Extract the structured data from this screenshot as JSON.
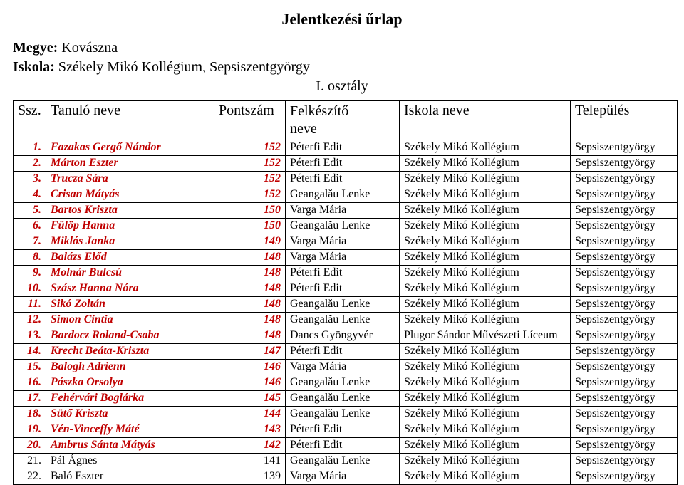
{
  "title": "Jelentkezési űrlap",
  "meta": {
    "county_label": "Megye:",
    "county_value": "Kovászna",
    "school_label": "Iskola:",
    "school_value": "Székely Mikó Kollégium, Sepsiszentgyörgy"
  },
  "subtitle": "I. osztály",
  "columns": {
    "ssz": "Ssz.",
    "name": "Tanuló neve",
    "points": "Pontszám",
    "preparer_line1": "Felkészítő",
    "preparer_line2": "neve",
    "school": "Iskola neve",
    "town": "Település"
  },
  "highlight_color": "#c00000",
  "rows": [
    {
      "n": "1.",
      "name": "Fazakas Gergő Nándor",
      "pts": "152",
      "prep": "Péterfi Edit",
      "school": "Székely Mikó Kollégium",
      "town": "Sepsiszentgyörgy",
      "hl": true
    },
    {
      "n": "2.",
      "name": "Márton Eszter",
      "pts": "152",
      "prep": "Péterfi Edit",
      "school": "Székely Mikó Kollégium",
      "town": "Sepsiszentgyörgy",
      "hl": true
    },
    {
      "n": "3.",
      "name": "Trucza Sára",
      "pts": "152",
      "prep": "Péterfi Edit",
      "school": "Székely Mikó Kollégium",
      "town": "Sepsiszentgyörgy",
      "hl": true
    },
    {
      "n": "4.",
      "name": "Crisan Mátyás",
      "pts": "152",
      "prep": "Geangalău Lenke",
      "school": "Székely Mikó Kollégium",
      "town": "Sepsiszentgyörgy",
      "hl": true
    },
    {
      "n": "5.",
      "name": "Bartos Kriszta",
      "pts": "150",
      "prep": "Varga Mária",
      "school": "Székely Mikó Kollégium",
      "town": "Sepsiszentgyörgy",
      "hl": true
    },
    {
      "n": "6.",
      "name": "Fülöp Hanna",
      "pts": "150",
      "prep": "Geangalău Lenke",
      "school": "Székely Mikó Kollégium",
      "town": "Sepsiszentgyörgy",
      "hl": true
    },
    {
      "n": "7.",
      "name": "Miklós Janka",
      "pts": "149",
      "prep": "Varga Mária",
      "school": "Székely Mikó Kollégium",
      "town": "Sepsiszentgyörgy",
      "hl": true
    },
    {
      "n": "8.",
      "name": "Balázs Előd",
      "pts": "148",
      "prep": "Varga Mária",
      "school": "Székely Mikó Kollégium",
      "town": "Sepsiszentgyörgy",
      "hl": true
    },
    {
      "n": "9.",
      "name": "Molnár Bulcsú",
      "pts": "148",
      "prep": "Péterfi Edit",
      "school": "Székely Mikó Kollégium",
      "town": "Sepsiszentgyörgy",
      "hl": true
    },
    {
      "n": "10.",
      "name": "Szász Hanna Nóra",
      "pts": "148",
      "prep": "Péterfi Edit",
      "school": "Székely Mikó Kollégium",
      "town": "Sepsiszentgyörgy",
      "hl": true
    },
    {
      "n": "11.",
      "name": "Sikó Zoltán",
      "pts": "148",
      "prep": "Geangalău Lenke",
      "school": "Székely Mikó Kollégium",
      "town": "Sepsiszentgyörgy",
      "hl": true
    },
    {
      "n": "12.",
      "name": "Simon Cintia",
      "pts": "148",
      "prep": "Geangalău Lenke",
      "school": "Székely Mikó Kollégium",
      "town": "Sepsiszentgyörgy",
      "hl": true
    },
    {
      "n": "13.",
      "name": "Bardocz Roland-Csaba",
      "pts": "148",
      "prep": "Dancs Gyöngyvér",
      "school": "Plugor Sándor Művészeti Líceum",
      "town": "Sepsiszentgyörgy",
      "hl": true
    },
    {
      "n": "14.",
      "name": "Krecht Beáta-Kriszta",
      "pts": "147",
      "prep": "Péterfi Edit",
      "school": "Székely Mikó Kollégium",
      "town": "Sepsiszentgyörgy",
      "hl": true
    },
    {
      "n": "15.",
      "name": "Balogh Adrienn",
      "pts": "146",
      "prep": "Varga Mária",
      "school": "Székely Mikó Kollégium",
      "town": "Sepsiszentgyörgy",
      "hl": true
    },
    {
      "n": "16.",
      "name": "Pászka Orsolya",
      "pts": "146",
      "prep": "Geangalău Lenke",
      "school": "Székely Mikó Kollégium",
      "town": "Sepsiszentgyörgy",
      "hl": true
    },
    {
      "n": "17.",
      "name": "Fehérvári Boglárka",
      "pts": "145",
      "prep": "Geangalău Lenke",
      "school": "Székely Mikó Kollégium",
      "town": "Sepsiszentgyörgy",
      "hl": true
    },
    {
      "n": "18.",
      "name": "Sütő Kriszta",
      "pts": "144",
      "prep": "Geangalău Lenke",
      "school": "Székely Mikó Kollégium",
      "town": "Sepsiszentgyörgy",
      "hl": true
    },
    {
      "n": "19.",
      "name": "Vén-Vinceffy Máté",
      "pts": "143",
      "prep": "Péterfi Edit",
      "school": "Székely Mikó Kollégium",
      "town": "Sepsiszentgyörgy",
      "hl": true
    },
    {
      "n": "20.",
      "name": "Ambrus Sánta Mátyás",
      "pts": "142",
      "prep": "Péterfi Edit",
      "school": "Székely Mikó Kollégium",
      "town": "Sepsiszentgyörgy",
      "hl": true
    },
    {
      "n": "21.",
      "name": "Pál Ágnes",
      "pts": "141",
      "prep": "Geangalău Lenke",
      "school": "Székely Mikó Kollégium",
      "town": "Sepsiszentgyörgy",
      "hl": false
    },
    {
      "n": "22.",
      "name": "Baló Eszter",
      "pts": "139",
      "prep": "Varga Mária",
      "school": "Székely Mikó Kollégium",
      "town": "Sepsiszentgyörgy",
      "hl": false
    }
  ]
}
